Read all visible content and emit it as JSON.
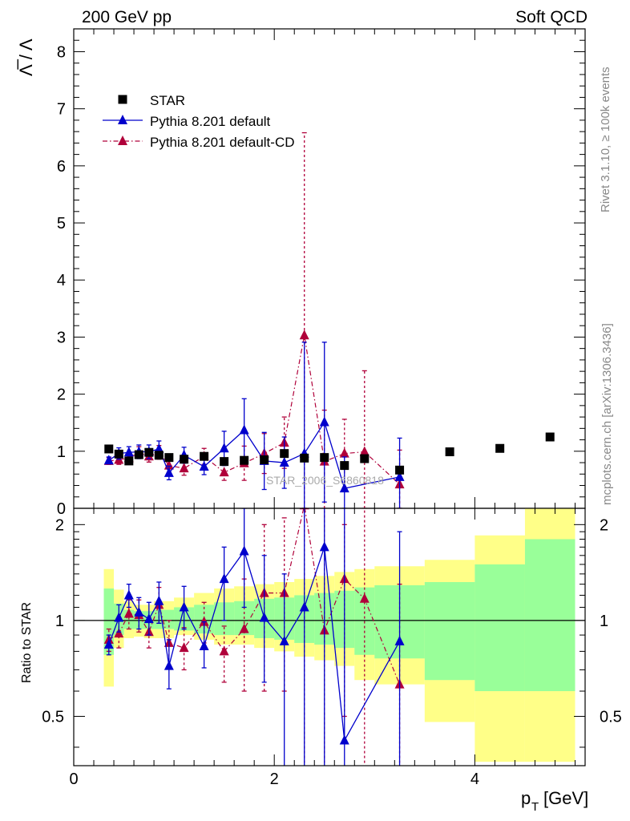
{
  "header": {
    "left": "200 GeV pp",
    "right": "Soft QCD"
  },
  "side_labels": {
    "top": "Rivet 3.1.10, ≥ 100k events",
    "bottom": "mcplots.cern.ch [arXiv:1306.3436]"
  },
  "watermark": "STAR_2006_S6860818",
  "colors": {
    "star": "#000000",
    "default": "#0000cc",
    "cd": "#b0003a",
    "band_outer": "#ffff88",
    "band_inner": "#99ff99"
  },
  "chart_data": [
    {
      "type": "scatter",
      "title": "",
      "ylabel": "Λ̅ / Λ",
      "xlabel": "p_T [GeV]",
      "xlim": [
        0,
        5.1
      ],
      "ylim": [
        0,
        8.4
      ],
      "yticks": [
        0,
        1,
        2,
        3,
        4,
        5,
        6,
        7,
        8
      ],
      "legend_position": "top-left",
      "series": [
        {
          "name": "STAR",
          "marker": "square",
          "x": [
            0.35,
            0.45,
            0.55,
            0.65,
            0.75,
            0.85,
            0.95,
            1.1,
            1.3,
            1.5,
            1.7,
            1.9,
            2.1,
            2.3,
            2.5,
            2.7,
            2.9,
            3.25,
            3.75,
            4.25,
            4.75
          ],
          "y": [
            1.04,
            0.95,
            0.83,
            0.94,
            0.98,
            0.93,
            0.89,
            0.86,
            0.91,
            0.82,
            0.84,
            0.85,
            0.96,
            0.88,
            0.89,
            0.75,
            0.87,
            0.67,
            0.99,
            1.05,
            1.25
          ]
        },
        {
          "name": "Pythia 8.201 default",
          "marker": "triangle",
          "line": "solid",
          "x": [
            0.35,
            0.45,
            0.55,
            0.65,
            0.75,
            0.85,
            0.95,
            1.1,
            1.3,
            1.5,
            1.7,
            1.9,
            2.1,
            2.3,
            2.5,
            2.7,
            3.25
          ],
          "y": [
            0.84,
            0.96,
            0.98,
            0.99,
            0.99,
            1.04,
            0.62,
            0.93,
            0.73,
            1.05,
            1.37,
            0.83,
            0.8,
            0.96,
            1.51,
            0.35,
            0.55
          ],
          "err": [
            0.06,
            0.1,
            0.1,
            0.12,
            0.12,
            0.14,
            0.12,
            0.14,
            0.14,
            0.3,
            0.55,
            0.5,
            0.45,
            1.95,
            1.4,
            0.55,
            0.68
          ]
        },
        {
          "name": "Pythia 8.201 default-CD",
          "marker": "triangle",
          "line": "dashdot",
          "x": [
            0.35,
            0.45,
            0.55,
            0.65,
            0.75,
            0.85,
            0.95,
            1.1,
            1.3,
            1.5,
            1.7,
            1.9,
            2.1,
            2.3,
            2.5,
            2.7,
            2.9,
            3.25
          ],
          "y": [
            0.83,
            0.85,
            0.88,
            0.98,
            0.91,
            0.98,
            0.75,
            0.7,
            0.91,
            0.63,
            0.79,
            0.96,
            1.15,
            3.03,
            0.82,
            0.96,
            0.99,
            0.42
          ],
          "err": [
            0.06,
            0.08,
            0.09,
            0.1,
            0.1,
            0.12,
            0.12,
            0.12,
            0.14,
            0.14,
            0.3,
            0.35,
            0.45,
            3.55,
            0.9,
            0.6,
            1.42,
            0.6
          ]
        }
      ]
    },
    {
      "type": "scatter",
      "title": "",
      "ylabel": "Ratio to STAR",
      "xlabel": "p_T [GeV]",
      "xlim": [
        0,
        5.1
      ],
      "ylim": [
        0.35,
        2.25
      ],
      "yscale": "log",
      "yticks": [
        0.5,
        1,
        2
      ],
      "xticks": [
        0,
        2,
        4
      ],
      "bands": {
        "edges": [
          0.3,
          0.4,
          0.5,
          0.6,
          0.7,
          0.8,
          0.9,
          1.0,
          1.2,
          1.4,
          1.6,
          1.8,
          2.0,
          2.2,
          2.4,
          2.6,
          2.8,
          3.0,
          3.5,
          4.0,
          4.5,
          5.0
        ],
        "outer_low": [
          0.62,
          0.82,
          0.88,
          0.89,
          0.88,
          0.88,
          0.88,
          0.9,
          0.87,
          0.84,
          0.84,
          0.82,
          0.8,
          0.77,
          0.75,
          0.72,
          0.65,
          0.63,
          0.48,
          0.36,
          0.36
        ],
        "outer_high": [
          1.45,
          1.25,
          1.15,
          1.12,
          1.12,
          1.15,
          1.15,
          1.18,
          1.22,
          1.26,
          1.28,
          1.3,
          1.32,
          1.35,
          1.38,
          1.42,
          1.45,
          1.48,
          1.55,
          1.85,
          2.3
        ],
        "inner_low": [
          0.78,
          0.9,
          0.94,
          0.94,
          0.94,
          0.94,
          0.94,
          0.93,
          0.91,
          0.9,
          0.9,
          0.88,
          0.87,
          0.85,
          0.84,
          0.82,
          0.78,
          0.76,
          0.65,
          0.6,
          0.6
        ],
        "inner_high": [
          1.26,
          1.13,
          1.08,
          1.07,
          1.07,
          1.08,
          1.08,
          1.1,
          1.12,
          1.14,
          1.15,
          1.17,
          1.18,
          1.2,
          1.22,
          1.24,
          1.27,
          1.29,
          1.32,
          1.5,
          1.8
        ]
      },
      "series": [
        {
          "name": "Pythia 8.201 default",
          "x": [
            0.35,
            0.45,
            0.55,
            0.65,
            0.75,
            0.85,
            0.95,
            1.1,
            1.3,
            1.5,
            1.7,
            1.9,
            2.1,
            2.3,
            2.5,
            2.7,
            3.25
          ],
          "y": [
            0.84,
            1.02,
            1.2,
            1.06,
            1.01,
            1.15,
            0.72,
            1.1,
            0.83,
            1.35,
            1.65,
            1.02,
            0.86,
            1.1,
            1.7,
            0.42,
            0.86
          ],
          "lo": [
            0.78,
            0.92,
            1.1,
            0.94,
            0.9,
            0.98,
            0.61,
            0.94,
            0.71,
            1.0,
            1.1,
            0.64,
            0.34,
            0.3,
            0.3,
            0.3,
            0.3
          ],
          "hi": [
            0.9,
            1.12,
            1.3,
            1.18,
            1.14,
            1.32,
            0.87,
            1.28,
            0.99,
            1.7,
            2.25,
            1.6,
            1.4,
            2.3,
            2.3,
            2.3,
            1.9
          ]
        },
        {
          "name": "Pythia 8.201 default-CD",
          "x": [
            0.35,
            0.45,
            0.55,
            0.65,
            0.75,
            0.85,
            0.95,
            1.1,
            1.3,
            1.5,
            1.7,
            1.9,
            2.1,
            2.3,
            2.5,
            2.7,
            2.9,
            3.25
          ],
          "y": [
            0.87,
            0.91,
            1.05,
            1.04,
            0.92,
            1.12,
            0.85,
            0.82,
            0.99,
            0.8,
            0.94,
            1.22,
            1.22,
            2.3,
            0.93,
            1.35,
            1.17,
            0.63
          ],
          "lo": [
            0.8,
            0.82,
            0.94,
            0.92,
            0.82,
            0.98,
            0.72,
            0.7,
            0.85,
            0.64,
            0.6,
            0.6,
            0.6,
            0.3,
            0.3,
            0.5,
            0.3,
            0.3
          ],
          "hi": [
            0.94,
            1.01,
            1.16,
            1.16,
            1.02,
            1.27,
            1.0,
            0.95,
            1.14,
            0.96,
            1.35,
            2.0,
            2.1,
            2.3,
            2.3,
            2.0,
            2.3,
            1.3
          ]
        }
      ]
    }
  ]
}
